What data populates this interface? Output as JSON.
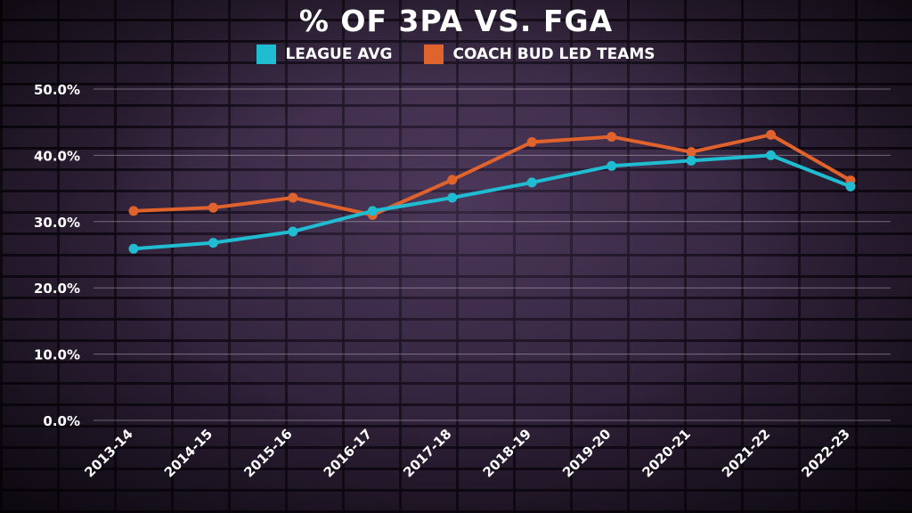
{
  "chart_data": {
    "type": "line",
    "title": "% OF 3PA VS. FGA",
    "xlabel": "",
    "ylabel": "",
    "categories": [
      "2013-14",
      "2014-15",
      "2015-16",
      "2016-17",
      "2017-18",
      "2018-19",
      "2019-20",
      "2020-21",
      "2021-22",
      "2022-23"
    ],
    "y_ticks": [
      "0.0%",
      "10.0%",
      "20.0%",
      "30.0%",
      "40.0%",
      "50.0%"
    ],
    "ylim": [
      0,
      50
    ],
    "grid": true,
    "legend_position": "top-center",
    "series": [
      {
        "name": "LEAGUE AVG",
        "color": "#1fbcd2",
        "values": [
          25.9,
          26.8,
          28.5,
          31.6,
          33.6,
          35.9,
          38.4,
          39.2,
          40.0,
          35.3
        ]
      },
      {
        "name": "COACH BUD LED TEAMS",
        "color": "#e0622c",
        "values": [
          31.6,
          32.1,
          33.6,
          31.0,
          36.3,
          42.0,
          42.8,
          40.5,
          43.1,
          36.2
        ]
      }
    ]
  }
}
